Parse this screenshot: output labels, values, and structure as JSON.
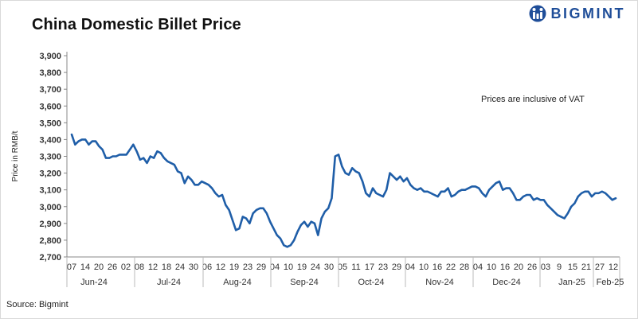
{
  "header": {
    "title": "China Domestic Billet Price",
    "brand": "BIGMINT",
    "brand_color": "#1f4e99",
    "logo_icon": "bigmint-logo-icon"
  },
  "footer": {
    "source": "Source: Bigmint"
  },
  "chart_data": {
    "type": "line",
    "title": "China Domestic Billet Price",
    "ylabel": "Price in RMB/t",
    "xlabel": "",
    "annotation": "Prices are inclusive of VAT",
    "ylim": [
      2700,
      3900
    ],
    "yticks": [
      "2,700",
      "2,800",
      "2,900",
      "3,000",
      "3,100",
      "3,200",
      "3,300",
      "3,400",
      "3,500",
      "3,600",
      "3,700",
      "3,800",
      "3,900"
    ],
    "ytick_values": [
      2700,
      2800,
      2900,
      3000,
      3100,
      3200,
      3300,
      3400,
      3500,
      3600,
      3700,
      3800,
      3900
    ],
    "xtick_labels": [
      "07",
      "14",
      "20",
      "26",
      "02",
      "08",
      "12",
      "18",
      "24",
      "30",
      "06",
      "12",
      "19",
      "23",
      "29",
      "04",
      "10",
      "19",
      "24",
      "30",
      "05",
      "11",
      "17",
      "23",
      "29",
      "04",
      "10",
      "16",
      "22",
      "28",
      "04",
      "10",
      "16",
      "20",
      "26",
      "03",
      "9",
      "15",
      "21",
      "27",
      "12"
    ],
    "months": [
      "Jun-24",
      "Jul-24",
      "Aug-24",
      "Sep-24",
      "Oct-24",
      "Nov-24",
      "Dec-24",
      "Jan-25",
      "Feb-25"
    ],
    "series": [
      {
        "name": "China Domestic Billet Price",
        "color": "#1f5ea8",
        "values": [
          3430,
          3370,
          3390,
          3400,
          3400,
          3370,
          3390,
          3390,
          3360,
          3340,
          3290,
          3290,
          3300,
          3300,
          3310,
          3310,
          3310,
          3340,
          3370,
          3330,
          3280,
          3290,
          3260,
          3300,
          3290,
          3330,
          3320,
          3290,
          3270,
          3260,
          3250,
          3210,
          3200,
          3140,
          3180,
          3160,
          3130,
          3130,
          3150,
          3140,
          3130,
          3110,
          3080,
          3060,
          3070,
          3010,
          2980,
          2920,
          2860,
          2870,
          2940,
          2930,
          2900,
          2960,
          2980,
          2990,
          2990,
          2960,
          2910,
          2870,
          2830,
          2810,
          2770,
          2760,
          2770,
          2800,
          2850,
          2890,
          2910,
          2880,
          2910,
          2900,
          2830,
          2930,
          2970,
          2990,
          3050,
          3300,
          3310,
          3240,
          3200,
          3190,
          3230,
          3210,
          3200,
          3150,
          3080,
          3060,
          3110,
          3080,
          3070,
          3060,
          3100,
          3200,
          3180,
          3160,
          3180,
          3150,
          3170,
          3130,
          3110,
          3100,
          3110,
          3090,
          3090,
          3080,
          3070,
          3060,
          3090,
          3090,
          3110,
          3060,
          3070,
          3090,
          3100,
          3100,
          3110,
          3120,
          3120,
          3110,
          3080,
          3060,
          3100,
          3120,
          3140,
          3150,
          3100,
          3110,
          3110,
          3080,
          3040,
          3040,
          3060,
          3070,
          3070,
          3040,
          3050,
          3040,
          3040,
          3010,
          2990,
          2970,
          2950,
          2940,
          2930,
          2960,
          3000,
          3020,
          3060,
          3080,
          3090,
          3090,
          3060,
          3080,
          3080,
          3090,
          3080,
          3060,
          3040,
          3050
        ]
      }
    ]
  }
}
